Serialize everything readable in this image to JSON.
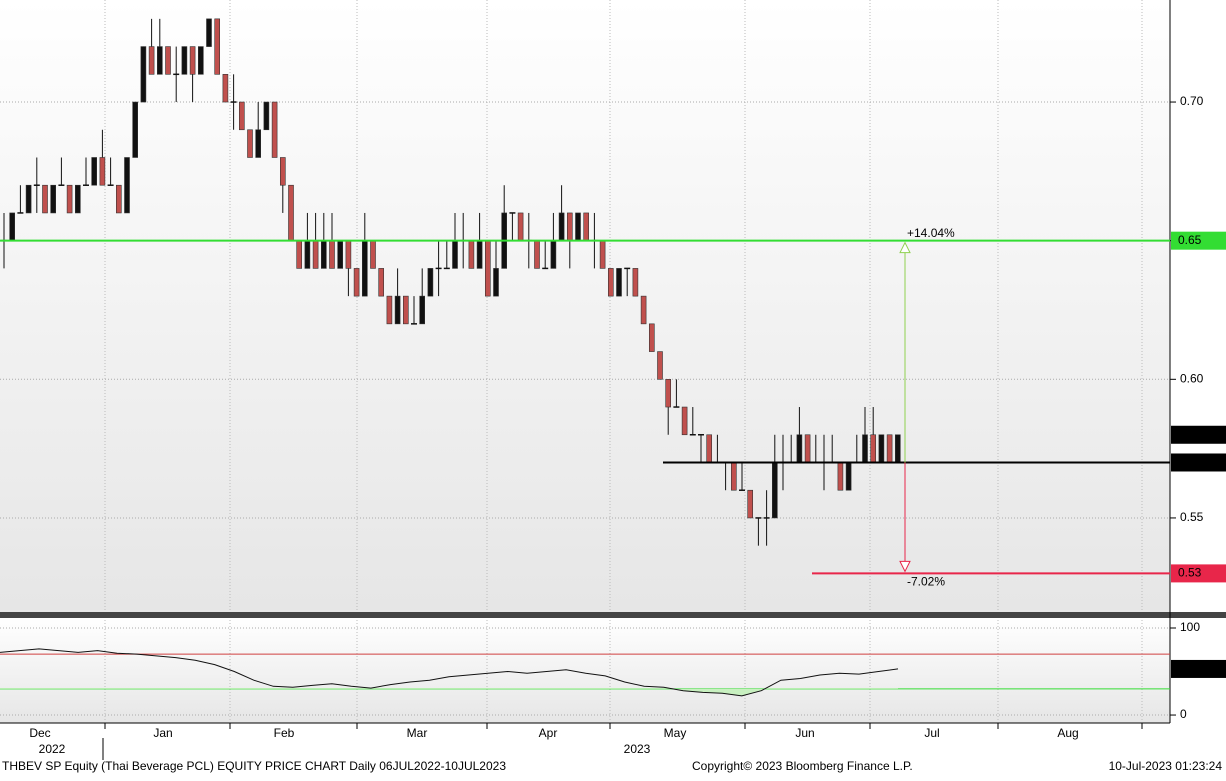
{
  "chart_data": {
    "type": "candlestick",
    "title": "THBEV SP Equity (Thai Beverage PCL) EQUITY PRICE CHART  Daily 06JUL2022-10JUL2023",
    "copyright": "Copyright© 2023 Bloomberg Finance L.P.",
    "timestamp": "10-Jul-2023 01:23:24",
    "months": [
      "Dec",
      "Jan",
      "Feb",
      "Mar",
      "Apr",
      "May",
      "Jun",
      "Jul",
      "Aug"
    ],
    "years": [
      "2022",
      "2023"
    ],
    "up_color": "#111111",
    "down_color": "#c0504d",
    "ylim": [
      0.5168,
      0.7368
    ],
    "yticks": [
      0.55,
      {
        "value": 0.6,
        "label": "0.60"
      },
      0.65,
      {
        "value": 0.7,
        "label": "0.70"
      }
    ],
    "candles": [
      [
        0.65,
        0.66,
        0.64,
        0.65
      ],
      [
        0.65,
        0.66,
        0.65,
        0.66
      ],
      [
        0.66,
        0.67,
        0.66,
        0.66
      ],
      [
        0.66,
        0.67,
        0.66,
        0.67
      ],
      [
        0.67,
        0.68,
        0.66,
        0.67
      ],
      [
        0.67,
        0.67,
        0.66,
        0.66
      ],
      [
        0.66,
        0.67,
        0.66,
        0.67
      ],
      [
        0.67,
        0.68,
        0.67,
        0.67
      ],
      [
        0.67,
        0.67,
        0.66,
        0.66
      ],
      [
        0.66,
        0.67,
        0.66,
        0.67
      ],
      [
        0.67,
        0.68,
        0.67,
        0.67
      ],
      [
        0.67,
        0.68,
        0.67,
        0.68
      ],
      [
        0.68,
        0.69,
        0.67,
        0.67
      ],
      [
        0.67,
        0.68,
        0.67,
        0.67
      ],
      [
        0.67,
        0.67,
        0.66,
        0.66
      ],
      [
        0.66,
        0.68,
        0.66,
        0.68
      ],
      [
        0.68,
        0.7,
        0.68,
        0.7
      ],
      [
        0.7,
        0.72,
        0.7,
        0.72
      ],
      [
        0.72,
        0.73,
        0.71,
        0.71
      ],
      [
        0.71,
        0.73,
        0.71,
        0.72
      ],
      [
        0.72,
        0.72,
        0.71,
        0.71
      ],
      [
        0.71,
        0.72,
        0.7,
        0.71
      ],
      [
        0.71,
        0.72,
        0.71,
        0.72
      ],
      [
        0.72,
        0.72,
        0.7,
        0.71
      ],
      [
        0.71,
        0.72,
        0.71,
        0.72
      ],
      [
        0.72,
        0.73,
        0.72,
        0.73
      ],
      [
        0.73,
        0.73,
        0.71,
        0.71
      ],
      [
        0.71,
        0.71,
        0.7,
        0.7
      ],
      [
        0.7,
        0.71,
        0.69,
        0.7
      ],
      [
        0.7,
        0.7,
        0.69,
        0.69
      ],
      [
        0.69,
        0.69,
        0.68,
        0.68
      ],
      [
        0.68,
        0.7,
        0.68,
        0.69
      ],
      [
        0.69,
        0.7,
        0.69,
        0.7
      ],
      [
        0.7,
        0.7,
        0.68,
        0.68
      ],
      [
        0.68,
        0.68,
        0.66,
        0.67
      ],
      [
        0.67,
        0.67,
        0.65,
        0.65
      ],
      [
        0.65,
        0.65,
        0.64,
        0.64
      ],
      [
        0.64,
        0.66,
        0.64,
        0.65
      ],
      [
        0.65,
        0.66,
        0.64,
        0.64
      ],
      [
        0.64,
        0.66,
        0.64,
        0.65
      ],
      [
        0.65,
        0.66,
        0.64,
        0.64
      ],
      [
        0.64,
        0.65,
        0.64,
        0.65
      ],
      [
        0.65,
        0.65,
        0.63,
        0.64
      ],
      [
        0.64,
        0.64,
        0.63,
        0.63
      ],
      [
        0.63,
        0.66,
        0.63,
        0.65
      ],
      [
        0.65,
        0.65,
        0.64,
        0.64
      ],
      [
        0.64,
        0.64,
        0.63,
        0.63
      ],
      [
        0.63,
        0.63,
        0.62,
        0.62
      ],
      [
        0.62,
        0.64,
        0.62,
        0.63
      ],
      [
        0.63,
        0.63,
        0.62,
        0.62
      ],
      [
        0.62,
        0.63,
        0.62,
        0.62
      ],
      [
        0.62,
        0.64,
        0.62,
        0.63
      ],
      [
        0.63,
        0.64,
        0.63,
        0.64
      ],
      [
        0.64,
        0.65,
        0.63,
        0.64
      ],
      [
        0.64,
        0.65,
        0.64,
        0.64
      ],
      [
        0.64,
        0.66,
        0.64,
        0.65
      ],
      [
        0.65,
        0.66,
        0.64,
        0.65
      ],
      [
        0.65,
        0.65,
        0.64,
        0.64
      ],
      [
        0.64,
        0.66,
        0.64,
        0.65
      ],
      [
        0.65,
        0.65,
        0.63,
        0.63
      ],
      [
        0.63,
        0.65,
        0.63,
        0.64
      ],
      [
        0.64,
        0.67,
        0.64,
        0.66
      ],
      [
        0.66,
        0.66,
        0.65,
        0.66
      ],
      [
        0.66,
        0.66,
        0.65,
        0.65
      ],
      [
        0.65,
        0.66,
        0.64,
        0.65
      ],
      [
        0.65,
        0.65,
        0.64,
        0.64
      ],
      [
        0.64,
        0.65,
        0.64,
        0.64
      ],
      [
        0.64,
        0.66,
        0.64,
        0.65
      ],
      [
        0.65,
        0.67,
        0.65,
        0.66
      ],
      [
        0.66,
        0.66,
        0.64,
        0.65
      ],
      [
        0.65,
        0.66,
        0.65,
        0.66
      ],
      [
        0.66,
        0.66,
        0.65,
        0.65
      ],
      [
        0.65,
        0.66,
        0.64,
        0.65
      ],
      [
        0.65,
        0.65,
        0.64,
        0.64
      ],
      [
        0.64,
        0.64,
        0.63,
        0.63
      ],
      [
        0.63,
        0.64,
        0.63,
        0.64
      ],
      [
        0.64,
        0.64,
        0.63,
        0.64
      ],
      [
        0.64,
        0.64,
        0.63,
        0.63
      ],
      [
        0.63,
        0.63,
        0.62,
        0.62
      ],
      [
        0.62,
        0.62,
        0.61,
        0.61
      ],
      [
        0.61,
        0.61,
        0.6,
        0.6
      ],
      [
        0.6,
        0.6,
        0.58,
        0.59
      ],
      [
        0.59,
        0.6,
        0.59,
        0.59
      ],
      [
        0.59,
        0.59,
        0.58,
        0.58
      ],
      [
        0.58,
        0.59,
        0.58,
        0.58
      ],
      [
        0.58,
        0.58,
        0.57,
        0.58
      ],
      [
        0.58,
        0.58,
        0.57,
        0.57
      ],
      [
        0.57,
        0.58,
        0.57,
        0.57
      ],
      [
        0.57,
        0.57,
        0.56,
        0.57
      ],
      [
        0.57,
        0.57,
        0.56,
        0.56
      ],
      [
        0.56,
        0.57,
        0.56,
        0.56
      ],
      [
        0.56,
        0.56,
        0.55,
        0.55
      ],
      [
        0.55,
        0.55,
        0.54,
        0.55
      ],
      [
        0.55,
        0.56,
        0.54,
        0.55
      ],
      [
        0.55,
        0.58,
        0.55,
        0.57
      ],
      [
        0.57,
        0.58,
        0.56,
        0.57
      ],
      [
        0.57,
        0.58,
        0.57,
        0.57
      ],
      [
        0.57,
        0.59,
        0.57,
        0.58
      ],
      [
        0.58,
        0.58,
        0.57,
        0.57
      ],
      [
        0.57,
        0.58,
        0.57,
        0.57
      ],
      [
        0.57,
        0.58,
        0.56,
        0.57
      ],
      [
        0.57,
        0.58,
        0.57,
        0.57
      ],
      [
        0.57,
        0.57,
        0.56,
        0.56
      ],
      [
        0.56,
        0.57,
        0.56,
        0.57
      ],
      [
        0.57,
        0.58,
        0.57,
        0.57
      ],
      [
        0.57,
        0.59,
        0.57,
        0.58
      ],
      [
        0.58,
        0.59,
        0.57,
        0.57
      ],
      [
        0.57,
        0.58,
        0.57,
        0.58
      ],
      [
        0.58,
        0.58,
        0.57,
        0.57
      ],
      [
        0.57,
        0.58,
        0.57,
        0.58
      ]
    ],
    "last_price": 0.58,
    "levels": [
      {
        "value": 0.65,
        "color": "#33dd33",
        "annotation": "+14.04%"
      },
      {
        "value": 0.57,
        "color": "#000000"
      },
      {
        "value": 0.53,
        "color": "#e8264a",
        "annotation": "-7.02%"
      }
    ],
    "rsi": {
      "ylim": [
        -8,
        109.2
      ],
      "yticks": [
        0,
        100
      ],
      "overbought": 70,
      "oversold": 30,
      "last_value": 52.9658,
      "values": [
        72,
        74,
        76,
        74,
        72,
        74,
        71,
        70,
        68,
        66,
        63,
        58,
        50,
        40,
        33,
        32,
        34,
        36,
        33,
        31,
        35,
        38,
        40,
        44,
        46,
        48,
        50,
        48,
        50,
        52,
        48,
        45,
        38,
        33,
        32,
        28,
        26,
        25,
        22,
        28,
        40,
        42,
        46,
        48,
        47,
        50,
        53
      ]
    }
  }
}
